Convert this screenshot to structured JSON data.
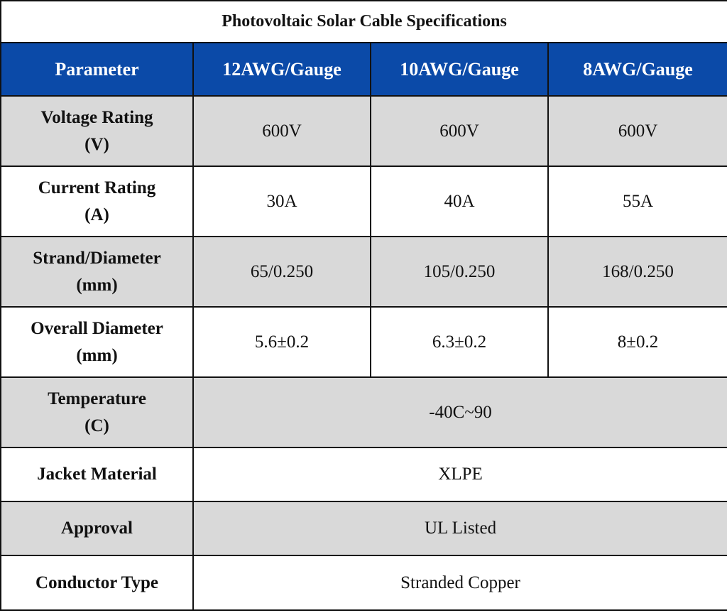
{
  "table": {
    "title": "Photovoltaic Solar Cable Specifications",
    "header": [
      "Parameter",
      "12AWG/Gauge",
      "10AWG/Gauge",
      "8AWG/Gauge"
    ],
    "rows": [
      [
        "Voltage Rating\n(V)",
        "600V",
        "600V",
        "600V"
      ],
      [
        "Current Rating\n(A)",
        "30A",
        "40A",
        "55A"
      ],
      [
        "Strand/Diameter\n(mm)",
        "65/0.250",
        "105/0.250",
        "168/0.250"
      ],
      [
        "Overall Diameter\n(mm)",
        "5.6±0.2",
        "6.3±0.2",
        "8±0.2"
      ],
      [
        "Temperature\n(C)",
        "-40C~90"
      ],
      [
        "Jacket Material",
        "XLPE"
      ],
      [
        "Approval",
        "UL Listed"
      ],
      [
        "Conductor Type",
        "Stranded Copper"
      ]
    ]
  }
}
